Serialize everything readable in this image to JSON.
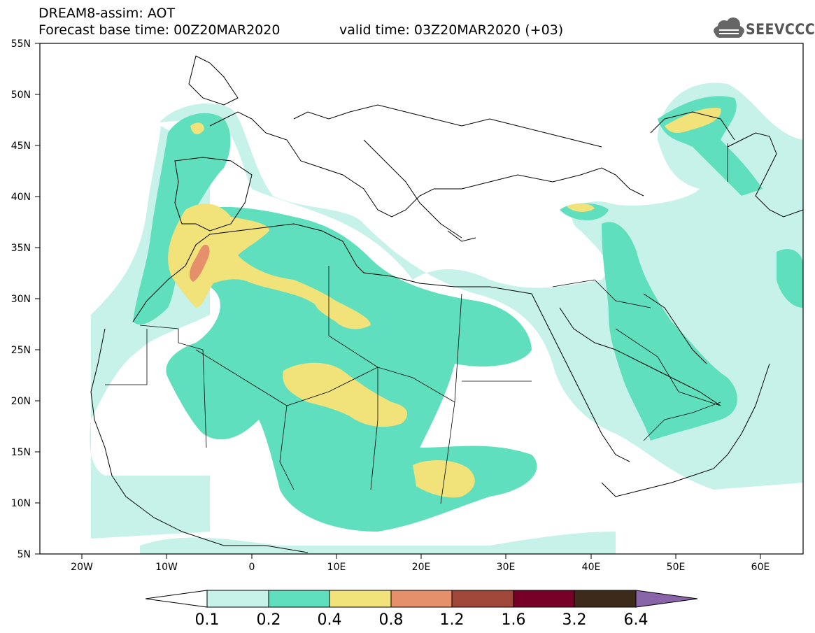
{
  "header": {
    "title": "DREAM8-assim: AOT",
    "base_time": "Forecast base time: 00Z20MAR2020",
    "valid_time": "valid time: 03Z20MAR2020 (+03)"
  },
  "logo": {
    "text": "SEEVCCC",
    "icon": "cloud-icon"
  },
  "map": {
    "lon_range": [
      -25,
      65
    ],
    "lat_range": [
      5,
      55
    ],
    "lat_labels": [
      "55N",
      "50N",
      "45N",
      "40N",
      "35N",
      "30N",
      "25N",
      "20N",
      "15N",
      "10N",
      "5N"
    ],
    "lon_labels": [
      "20W",
      "10W",
      "0",
      "10E",
      "20E",
      "30E",
      "40E",
      "50E",
      "60E"
    ]
  },
  "colorbar": {
    "levels": [
      "0.1",
      "0.2",
      "0.4",
      "0.8",
      "1.2",
      "1.6",
      "3.2",
      "6.4"
    ],
    "colors": [
      "#ffffff",
      "#c6f2ea",
      "#5fdfbd",
      "#f2e27a",
      "#e5906a",
      "#a0473a",
      "#780028",
      "#3d2a1a",
      "#8a64a8"
    ]
  }
}
